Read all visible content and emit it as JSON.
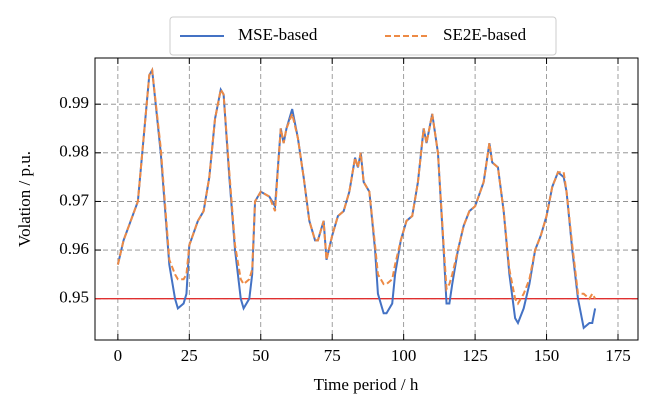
{
  "chart_data": {
    "type": "line",
    "xlabel": "Time period / h",
    "ylabel": "Volation / p.u.",
    "x": [
      0,
      2,
      7,
      11,
      12,
      15,
      18,
      20,
      21,
      23,
      24,
      25,
      28,
      30,
      32,
      34,
      36,
      37,
      39,
      41,
      43,
      44,
      46,
      47,
      48,
      50,
      53,
      55,
      57,
      58,
      59,
      61,
      63,
      65,
      67,
      69,
      70,
      72,
      73,
      75,
      77,
      79,
      81,
      83,
      84,
      85,
      86,
      88,
      90,
      91,
      93,
      94,
      96,
      97,
      99,
      101,
      103,
      105,
      107,
      108,
      110,
      112,
      114,
      115,
      116,
      117,
      119,
      121,
      123,
      125,
      128,
      130,
      131,
      133,
      135,
      137,
      139,
      140,
      142,
      144,
      146,
      148,
      150,
      152,
      154,
      156,
      157,
      159,
      161,
      163,
      165,
      166,
      167
    ],
    "series": [
      {
        "name": "MSE-based",
        "color": "#4472c4",
        "dash": false,
        "values": [
          0.957,
          0.962,
          0.97,
          0.996,
          0.997,
          0.98,
          0.957,
          0.95,
          0.948,
          0.949,
          0.951,
          0.961,
          0.966,
          0.968,
          0.975,
          0.987,
          0.993,
          0.992,
          0.975,
          0.96,
          0.95,
          0.948,
          0.95,
          0.955,
          0.97,
          0.972,
          0.971,
          0.969,
          0.985,
          0.982,
          0.985,
          0.989,
          0.983,
          0.975,
          0.966,
          0.962,
          0.962,
          0.966,
          0.958,
          0.963,
          0.967,
          0.968,
          0.972,
          0.979,
          0.977,
          0.98,
          0.974,
          0.972,
          0.96,
          0.951,
          0.947,
          0.947,
          0.949,
          0.955,
          0.962,
          0.966,
          0.967,
          0.974,
          0.985,
          0.982,
          0.988,
          0.98,
          0.96,
          0.949,
          0.949,
          0.953,
          0.96,
          0.965,
          0.968,
          0.969,
          0.974,
          0.982,
          0.978,
          0.977,
          0.968,
          0.955,
          0.946,
          0.945,
          0.948,
          0.953,
          0.96,
          0.963,
          0.967,
          0.973,
          0.976,
          0.975,
          0.972,
          0.96,
          0.95,
          0.944,
          0.945,
          0.945,
          0.948
        ]
      },
      {
        "name": "SE2E-based",
        "color": "#ed8a45",
        "dash": true,
        "values": [
          0.957,
          0.962,
          0.97,
          0.996,
          0.997,
          0.981,
          0.958,
          0.955,
          0.954,
          0.954,
          0.955,
          0.961,
          0.966,
          0.968,
          0.975,
          0.987,
          0.993,
          0.992,
          0.976,
          0.961,
          0.954,
          0.953,
          0.954,
          0.956,
          0.97,
          0.972,
          0.971,
          0.968,
          0.985,
          0.982,
          0.985,
          0.988,
          0.983,
          0.975,
          0.966,
          0.962,
          0.962,
          0.966,
          0.958,
          0.963,
          0.967,
          0.968,
          0.972,
          0.979,
          0.977,
          0.98,
          0.974,
          0.972,
          0.961,
          0.955,
          0.953,
          0.953,
          0.954,
          0.957,
          0.962,
          0.966,
          0.967,
          0.974,
          0.985,
          0.982,
          0.988,
          0.98,
          0.961,
          0.952,
          0.953,
          0.955,
          0.96,
          0.965,
          0.968,
          0.969,
          0.974,
          0.982,
          0.978,
          0.977,
          0.968,
          0.956,
          0.95,
          0.949,
          0.951,
          0.954,
          0.96,
          0.963,
          0.967,
          0.973,
          0.976,
          0.976,
          0.972,
          0.961,
          0.951,
          0.951,
          0.95,
          0.951,
          0.95
        ]
      }
    ],
    "hline": {
      "value": 0.95,
      "color": "#e03030"
    },
    "xlim": [
      -8,
      182
    ],
    "ylim": [
      0.9415,
      0.9995
    ],
    "xticks": [
      0,
      25,
      50,
      75,
      100,
      125,
      150,
      175
    ],
    "yticks": [
      0.95,
      0.96,
      0.97,
      0.98,
      0.99
    ],
    "grid": true,
    "legend": "top"
  }
}
